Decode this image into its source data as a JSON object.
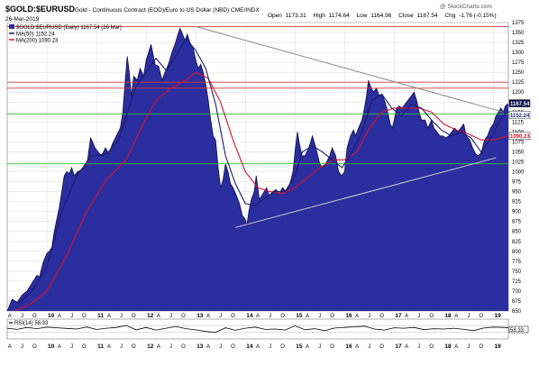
{
  "chart_data": {
    "type": "area",
    "header": {
      "symbol": "$GOLD:$EURUSD",
      "description": "Gold - Continuous Contract (EOD)/Euro to US Dollar (NBD)  CME/INDX",
      "date": "26-Mar-2019",
      "open_label": "Open",
      "open": "1173.31",
      "high_label": "High",
      "high": "1174.64",
      "low_label": "Low",
      "low": "1164.96",
      "close_label": "Close",
      "close": "1167.54",
      "chg_label": "Chg",
      "chg": "-1.76 (-0.15%)",
      "watermark": "@ StockCharts.com"
    },
    "legend": {
      "price": "$GOLD:$EURUSD (Daily) 1167.54 (26 Mar)",
      "ma50": "MA(50) 1152.24",
      "ma200": "MA(200) 1090.23"
    },
    "colors": {
      "price_fill": "#2b2e9e",
      "price_line": "#0b0c4a",
      "ma50": "#1a1c6e",
      "ma200": "#d8102a",
      "resistance": "#d23a3a",
      "support": "#2fbf2f",
      "trendline_upper": "#888888",
      "trendline_lower": "#cfcfcf",
      "grid": "#d8d8d8"
    },
    "yaxis": {
      "min": 650,
      "max": 1375,
      "ticks": [
        650,
        675,
        700,
        725,
        750,
        775,
        800,
        825,
        850,
        875,
        900,
        925,
        950,
        975,
        1000,
        1025,
        1050,
        1075,
        1100,
        1125,
        1150,
        1175,
        1200,
        1225,
        1250,
        1275,
        1300,
        1325,
        1350,
        1375
      ]
    },
    "xaxis": {
      "start": 2009.2,
      "end": 2019.3,
      "years": [
        {
          "label": "10",
          "t": 2010.0
        },
        {
          "label": "11",
          "t": 2011.0
        },
        {
          "label": "12",
          "t": 2012.0
        },
        {
          "label": "13",
          "t": 2013.0
        },
        {
          "label": "14",
          "t": 2014.0
        },
        {
          "label": "15",
          "t": 2015.0
        },
        {
          "label": "16",
          "t": 2016.0
        },
        {
          "label": "17",
          "t": 2017.0
        },
        {
          "label": "18",
          "t": 2018.0
        },
        {
          "label": "19",
          "t": 2019.0
        }
      ],
      "month_labels": [
        "A",
        "J",
        "O",
        "A",
        "J",
        "O",
        "A",
        "J",
        "O",
        "A",
        "J",
        "O",
        "A",
        "J",
        "O",
        "A",
        "J",
        "O",
        "A",
        "J",
        "O",
        "A",
        "J",
        "O",
        "A",
        "J",
        "O",
        "A",
        "J",
        "O"
      ],
      "month_positions": [
        2009.25,
        2009.5,
        2009.75,
        2010.25,
        2010.5,
        2010.75,
        2011.25,
        2011.5,
        2011.75,
        2012.25,
        2012.5,
        2012.75,
        2013.25,
        2013.5,
        2013.75,
        2014.25,
        2014.5,
        2014.75,
        2015.25,
        2015.5,
        2015.75,
        2016.25,
        2016.5,
        2016.75,
        2017.25,
        2017.5,
        2017.75,
        2018.25,
        2018.5,
        2018.75
      ]
    },
    "price_series": [
      [
        2009.2,
        650
      ],
      [
        2009.3,
        680
      ],
      [
        2009.4,
        672
      ],
      [
        2009.5,
        690
      ],
      [
        2009.6,
        700
      ],
      [
        2009.7,
        720
      ],
      [
        2009.8,
        740
      ],
      [
        2009.85,
        735
      ],
      [
        2009.92,
        770
      ],
      [
        2010.0,
        795
      ],
      [
        2010.05,
        800
      ],
      [
        2010.1,
        810
      ],
      [
        2010.15,
        850
      ],
      [
        2010.2,
        880
      ],
      [
        2010.25,
        910
      ],
      [
        2010.3,
        950
      ],
      [
        2010.35,
        990
      ],
      [
        2010.4,
        1000
      ],
      [
        2010.45,
        995
      ],
      [
        2010.5,
        1010
      ],
      [
        2010.55,
        990
      ],
      [
        2010.62,
        1000
      ],
      [
        2010.7,
        1005
      ],
      [
        2010.75,
        1010
      ],
      [
        2010.82,
        1030
      ],
      [
        2010.88,
        1085
      ],
      [
        2010.92,
        1075
      ],
      [
        2010.97,
        1060
      ],
      [
        2011.03,
        1050
      ],
      [
        2011.1,
        1040
      ],
      [
        2011.18,
        1060
      ],
      [
        2011.25,
        1045
      ],
      [
        2011.32,
        1070
      ],
      [
        2011.4,
        1090
      ],
      [
        2011.48,
        1110
      ],
      [
        2011.53,
        1150
      ],
      [
        2011.58,
        1230
      ],
      [
        2011.62,
        1290
      ],
      [
        2011.66,
        1250
      ],
      [
        2011.7,
        1190
      ],
      [
        2011.75,
        1240
      ],
      [
        2011.82,
        1230
      ],
      [
        2011.88,
        1260
      ],
      [
        2011.95,
        1240
      ],
      [
        2012.0,
        1280
      ],
      [
        2012.05,
        1300
      ],
      [
        2012.1,
        1320
      ],
      [
        2012.18,
        1270
      ],
      [
        2012.25,
        1265
      ],
      [
        2012.32,
        1230
      ],
      [
        2012.38,
        1250
      ],
      [
        2012.45,
        1270
      ],
      [
        2012.52,
        1300
      ],
      [
        2012.58,
        1320
      ],
      [
        2012.63,
        1340
      ],
      [
        2012.68,
        1360
      ],
      [
        2012.72,
        1350
      ],
      [
        2012.78,
        1330
      ],
      [
        2012.83,
        1345
      ],
      [
        2012.88,
        1325
      ],
      [
        2012.95,
        1310
      ],
      [
        2013.0,
        1280
      ],
      [
        2013.05,
        1260
      ],
      [
        2013.1,
        1270
      ],
      [
        2013.15,
        1250
      ],
      [
        2013.2,
        1220
      ],
      [
        2013.25,
        1180
      ],
      [
        2013.3,
        1130
      ],
      [
        2013.35,
        1090
      ],
      [
        2013.4,
        1080
      ],
      [
        2013.45,
        1010
      ],
      [
        2013.5,
        960
      ],
      [
        2013.55,
        980
      ],
      [
        2013.6,
        1020
      ],
      [
        2013.65,
        1000
      ],
      [
        2013.7,
        970
      ],
      [
        2013.75,
        960
      ],
      [
        2013.82,
        940
      ],
      [
        2013.88,
        920
      ],
      [
        2013.94,
        890
      ],
      [
        2014.0,
        880
      ],
      [
        2014.03,
        865
      ],
      [
        2014.07,
        900
      ],
      [
        2014.12,
        930
      ],
      [
        2014.18,
        950
      ],
      [
        2014.22,
        990
      ],
      [
        2014.28,
        930
      ],
      [
        2014.33,
        940
      ],
      [
        2014.38,
        950
      ],
      [
        2014.43,
        960
      ],
      [
        2014.48,
        940
      ],
      [
        2014.55,
        950
      ],
      [
        2014.62,
        955
      ],
      [
        2014.68,
        945
      ],
      [
        2014.75,
        960
      ],
      [
        2014.82,
        950
      ],
      [
        2014.88,
        965
      ],
      [
        2014.92,
        980
      ],
      [
        2014.96,
        1000
      ],
      [
        2015.0,
        1050
      ],
      [
        2015.05,
        1100
      ],
      [
        2015.09,
        1070
      ],
      [
        2015.14,
        1040
      ],
      [
        2015.2,
        1040
      ],
      [
        2015.28,
        1060
      ],
      [
        2015.35,
        1090
      ],
      [
        2015.42,
        1060
      ],
      [
        2015.5,
        1020
      ],
      [
        2015.55,
        1010
      ],
      [
        2015.62,
        1020
      ],
      [
        2015.7,
        1040
      ],
      [
        2015.75,
        1060
      ],
      [
        2015.82,
        1040
      ],
      [
        2015.88,
        1000
      ],
      [
        2015.94,
        990
      ],
      [
        2016.0,
        1000
      ],
      [
        2016.05,
        1060
      ],
      [
        2016.12,
        1090
      ],
      [
        2016.18,
        1105
      ],
      [
        2016.22,
        1090
      ],
      [
        2016.28,
        1110
      ],
      [
        2016.35,
        1130
      ],
      [
        2016.4,
        1160
      ],
      [
        2016.44,
        1190
      ],
      [
        2016.48,
        1230
      ],
      [
        2016.52,
        1215
      ],
      [
        2016.58,
        1200
      ],
      [
        2016.64,
        1210
      ],
      [
        2016.7,
        1190
      ],
      [
        2016.75,
        1195
      ],
      [
        2016.8,
        1180
      ],
      [
        2016.85,
        1160
      ],
      [
        2016.92,
        1120
      ],
      [
        2016.96,
        1110
      ],
      [
        2017.0,
        1130
      ],
      [
        2017.05,
        1160
      ],
      [
        2017.1,
        1165
      ],
      [
        2017.16,
        1160
      ],
      [
        2017.22,
        1170
      ],
      [
        2017.28,
        1180
      ],
      [
        2017.34,
        1190
      ],
      [
        2017.4,
        1200
      ],
      [
        2017.45,
        1180
      ],
      [
        2017.5,
        1150
      ],
      [
        2017.55,
        1130
      ],
      [
        2017.62,
        1130
      ],
      [
        2017.68,
        1110
      ],
      [
        2017.75,
        1130
      ],
      [
        2017.8,
        1110
      ],
      [
        2017.86,
        1100
      ],
      [
        2017.92,
        1090
      ],
      [
        2017.98,
        1090
      ],
      [
        2018.04,
        1085
      ],
      [
        2018.1,
        1090
      ],
      [
        2018.16,
        1100
      ],
      [
        2018.22,
        1110
      ],
      [
        2018.28,
        1100
      ],
      [
        2018.34,
        1110
      ],
      [
        2018.4,
        1120
      ],
      [
        2018.45,
        1090
      ],
      [
        2018.52,
        1080
      ],
      [
        2018.58,
        1060
      ],
      [
        2018.64,
        1045
      ],
      [
        2018.7,
        1040
      ],
      [
        2018.76,
        1050
      ],
      [
        2018.82,
        1080
      ],
      [
        2018.88,
        1090
      ],
      [
        2018.94,
        1110
      ],
      [
        2019.0,
        1120
      ],
      [
        2019.05,
        1140
      ],
      [
        2019.1,
        1150
      ],
      [
        2019.15,
        1160
      ],
      [
        2019.2,
        1150
      ],
      [
        2019.24,
        1165
      ],
      [
        2019.28,
        1170
      ],
      [
        2019.3,
        1167.54
      ]
    ],
    "ma50_series": [
      [
        2009.4,
        665
      ],
      [
        2009.7,
        700
      ],
      [
        2010.0,
        760
      ],
      [
        2010.3,
        900
      ],
      [
        2010.6,
        990
      ],
      [
        2010.9,
        1040
      ],
      [
        2011.2,
        1045
      ],
      [
        2011.45,
        1080
      ],
      [
        2011.6,
        1140
      ],
      [
        2011.8,
        1215
      ],
      [
        2012.0,
        1250
      ],
      [
        2012.2,
        1285
      ],
      [
        2012.4,
        1255
      ],
      [
        2012.6,
        1290
      ],
      [
        2012.8,
        1335
      ],
      [
        2013.0,
        1305
      ],
      [
        2013.2,
        1260
      ],
      [
        2013.4,
        1170
      ],
      [
        2013.6,
        1040
      ],
      [
        2013.8,
        970
      ],
      [
        2014.0,
        920
      ],
      [
        2014.2,
        915
      ],
      [
        2014.4,
        935
      ],
      [
        2014.6,
        950
      ],
      [
        2014.8,
        950
      ],
      [
        2015.0,
        990
      ],
      [
        2015.15,
        1050
      ],
      [
        2015.35,
        1065
      ],
      [
        2015.55,
        1050
      ],
      [
        2015.75,
        1030
      ],
      [
        2015.95,
        1010
      ],
      [
        2016.15,
        1050
      ],
      [
        2016.35,
        1100
      ],
      [
        2016.55,
        1180
      ],
      [
        2016.75,
        1195
      ],
      [
        2016.95,
        1160
      ],
      [
        2017.15,
        1140
      ],
      [
        2017.35,
        1170
      ],
      [
        2017.55,
        1160
      ],
      [
        2017.75,
        1130
      ],
      [
        2017.95,
        1105
      ],
      [
        2018.15,
        1090
      ],
      [
        2018.35,
        1100
      ],
      [
        2018.55,
        1085
      ],
      [
        2018.75,
        1050
      ],
      [
        2018.95,
        1085
      ],
      [
        2019.15,
        1135
      ],
      [
        2019.3,
        1152.24
      ]
    ],
    "ma200_series": [
      [
        2009.35,
        650
      ],
      [
        2009.7,
        670
      ],
      [
        2010.0,
        700
      ],
      [
        2010.4,
        790
      ],
      [
        2010.8,
        900
      ],
      [
        2011.2,
        980
      ],
      [
        2011.6,
        1030
      ],
      [
        2011.9,
        1110
      ],
      [
        2012.2,
        1180
      ],
      [
        2012.5,
        1210
      ],
      [
        2012.8,
        1230
      ],
      [
        2013.0,
        1250
      ],
      [
        2013.25,
        1235
      ],
      [
        2013.5,
        1175
      ],
      [
        2013.75,
        1080
      ],
      [
        2014.0,
        1000
      ],
      [
        2014.25,
        960
      ],
      [
        2014.5,
        950
      ],
      [
        2014.75,
        945
      ],
      [
        2015.0,
        960
      ],
      [
        2015.25,
        985
      ],
      [
        2015.5,
        1010
      ],
      [
        2015.75,
        1030
      ],
      [
        2016.0,
        1030
      ],
      [
        2016.25,
        1050
      ],
      [
        2016.5,
        1110
      ],
      [
        2016.75,
        1150
      ],
      [
        2017.0,
        1160
      ],
      [
        2017.25,
        1160
      ],
      [
        2017.5,
        1160
      ],
      [
        2017.75,
        1150
      ],
      [
        2018.0,
        1120
      ],
      [
        2018.25,
        1105
      ],
      [
        2018.5,
        1095
      ],
      [
        2018.75,
        1080
      ],
      [
        2019.0,
        1080
      ],
      [
        2019.3,
        1090.23
      ]
    ],
    "horizontal_lines": [
      {
        "name": "resistance-1365",
        "value": 1365,
        "color": "resistance"
      },
      {
        "name": "resistance-1225",
        "value": 1225,
        "color": "resistance"
      },
      {
        "name": "resistance-1210",
        "value": 1210,
        "color": "resistance"
      },
      {
        "name": "support-1145",
        "value": 1145,
        "color": "support"
      },
      {
        "name": "support-1020",
        "value": 1020,
        "color": "support"
      }
    ],
    "trendlines": [
      {
        "name": "upper-trendline",
        "from": [
          2013.0,
          1365
        ],
        "to": [
          2019.2,
          1150
        ],
        "color": "trendline_upper"
      },
      {
        "name": "lower-trendline",
        "from": [
          2013.8,
          860
        ],
        "to": [
          2019.05,
          1035
        ],
        "color": "trendline_lower"
      }
    ],
    "price_tags": [
      {
        "label": "1167.54",
        "value": 1167.54,
        "bg": "#0b0c4a",
        "fg": "#ffffff"
      },
      {
        "label": "1152.24",
        "value": 1152.24,
        "bg": "#ffffff",
        "fg": "#1a1c6e"
      },
      {
        "label": "1090.23",
        "value": 1090.23,
        "bg": "#ffffff",
        "fg": "#d8102a"
      }
    ],
    "rsi": {
      "label": "RSI(14) 58.33",
      "value": 58.33,
      "tag": "58.33",
      "series": [
        [
          2009.2,
          55
        ],
        [
          2009.4,
          48
        ],
        [
          2009.6,
          60
        ],
        [
          2009.8,
          52
        ],
        [
          2010.0,
          62
        ],
        [
          2010.2,
          58
        ],
        [
          2010.4,
          54
        ],
        [
          2010.6,
          50
        ],
        [
          2010.8,
          63
        ],
        [
          2011.0,
          47
        ],
        [
          2011.2,
          55
        ],
        [
          2011.4,
          60
        ],
        [
          2011.6,
          72
        ],
        [
          2011.8,
          45
        ],
        [
          2012.0,
          60
        ],
        [
          2012.2,
          44
        ],
        [
          2012.4,
          55
        ],
        [
          2012.6,
          66
        ],
        [
          2012.8,
          52
        ],
        [
          2013.0,
          45
        ],
        [
          2013.2,
          35
        ],
        [
          2013.4,
          30
        ],
        [
          2013.6,
          58
        ],
        [
          2013.8,
          42
        ],
        [
          2014.0,
          55
        ],
        [
          2014.2,
          62
        ],
        [
          2014.4,
          48
        ],
        [
          2014.6,
          50
        ],
        [
          2014.8,
          44
        ],
        [
          2015.0,
          70
        ],
        [
          2015.2,
          46
        ],
        [
          2015.4,
          52
        ],
        [
          2015.6,
          40
        ],
        [
          2015.8,
          56
        ],
        [
          2016.0,
          60
        ],
        [
          2016.2,
          64
        ],
        [
          2016.4,
          68
        ],
        [
          2016.6,
          50
        ],
        [
          2016.8,
          44
        ],
        [
          2017.0,
          58
        ],
        [
          2017.2,
          55
        ],
        [
          2017.4,
          60
        ],
        [
          2017.6,
          46
        ],
        [
          2017.8,
          52
        ],
        [
          2018.0,
          50
        ],
        [
          2018.2,
          55
        ],
        [
          2018.4,
          48
        ],
        [
          2018.6,
          40
        ],
        [
          2018.8,
          56
        ],
        [
          2019.0,
          62
        ],
        [
          2019.2,
          60
        ],
        [
          2019.3,
          58.33
        ]
      ]
    }
  }
}
